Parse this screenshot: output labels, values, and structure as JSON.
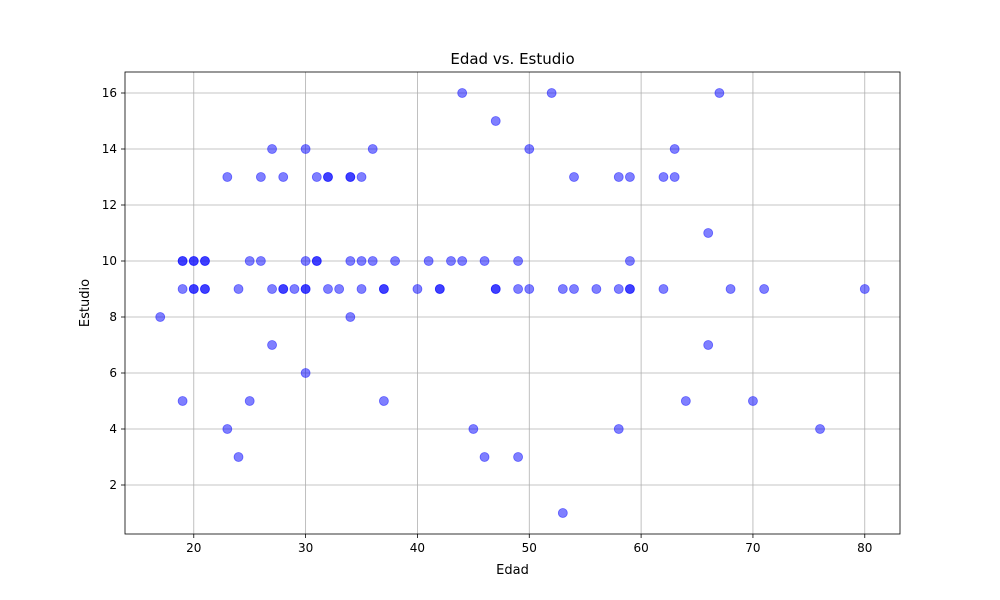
{
  "chart_data": {
    "type": "scatter",
    "title": "Edad vs. Estudio",
    "xlabel": "Edad",
    "ylabel": "Estudio",
    "xlim": [
      13.85,
      83.15
    ],
    "ylim": [
      0.25,
      16.75
    ],
    "xticks": [
      20,
      30,
      40,
      50,
      60,
      70,
      80
    ],
    "yticks": [
      2,
      4,
      6,
      8,
      10,
      12,
      14,
      16
    ],
    "grid": true,
    "marker_color": "#0000ff",
    "marker_opacity": 0.5,
    "points": [
      [
        17,
        8
      ],
      [
        19,
        10
      ],
      [
        19,
        10
      ],
      [
        19,
        9
      ],
      [
        19,
        5
      ],
      [
        20,
        10
      ],
      [
        20,
        10
      ],
      [
        20,
        9
      ],
      [
        20,
        9
      ],
      [
        21,
        10
      ],
      [
        21,
        10
      ],
      [
        21,
        9
      ],
      [
        21,
        9
      ],
      [
        23,
        13
      ],
      [
        23,
        4
      ],
      [
        24,
        9
      ],
      [
        24,
        3
      ],
      [
        25,
        10
      ],
      [
        25,
        5
      ],
      [
        26,
        13
      ],
      [
        26,
        10
      ],
      [
        27,
        14
      ],
      [
        27,
        9
      ],
      [
        27,
        7
      ],
      [
        28,
        13
      ],
      [
        28,
        9
      ],
      [
        28,
        9
      ],
      [
        29,
        9
      ],
      [
        30,
        14
      ],
      [
        30,
        10
      ],
      [
        30,
        9
      ],
      [
        30,
        9
      ],
      [
        30,
        6
      ],
      [
        31,
        13
      ],
      [
        31,
        10
      ],
      [
        31,
        10
      ],
      [
        32,
        13
      ],
      [
        32,
        13
      ],
      [
        32,
        9
      ],
      [
        33,
        9
      ],
      [
        34,
        13
      ],
      [
        34,
        13
      ],
      [
        34,
        10
      ],
      [
        34,
        8
      ],
      [
        35,
        13
      ],
      [
        35,
        10
      ],
      [
        35,
        9
      ],
      [
        36,
        14
      ],
      [
        36,
        10
      ],
      [
        37,
        9
      ],
      [
        37,
        9
      ],
      [
        37,
        5
      ],
      [
        38,
        10
      ],
      [
        40,
        9
      ],
      [
        41,
        10
      ],
      [
        42,
        9
      ],
      [
        42,
        9
      ],
      [
        43,
        10
      ],
      [
        44,
        16
      ],
      [
        44,
        10
      ],
      [
        45,
        4
      ],
      [
        46,
        10
      ],
      [
        46,
        3
      ],
      [
        47,
        15
      ],
      [
        47,
        9
      ],
      [
        47,
        9
      ],
      [
        49,
        10
      ],
      [
        49,
        9
      ],
      [
        49,
        3
      ],
      [
        50,
        14
      ],
      [
        50,
        9
      ],
      [
        52,
        16
      ],
      [
        53,
        9
      ],
      [
        53,
        1
      ],
      [
        54,
        13
      ],
      [
        54,
        9
      ],
      [
        56,
        9
      ],
      [
        58,
        13
      ],
      [
        58,
        9
      ],
      [
        58,
        4
      ],
      [
        59,
        13
      ],
      [
        59,
        10
      ],
      [
        59,
        9
      ],
      [
        59,
        9
      ],
      [
        62,
        13
      ],
      [
        62,
        9
      ],
      [
        63,
        14
      ],
      [
        63,
        13
      ],
      [
        64,
        5
      ],
      [
        66,
        11
      ],
      [
        66,
        7
      ],
      [
        67,
        16
      ],
      [
        68,
        9
      ],
      [
        70,
        5
      ],
      [
        71,
        9
      ],
      [
        76,
        4
      ],
      [
        80,
        9
      ]
    ]
  }
}
